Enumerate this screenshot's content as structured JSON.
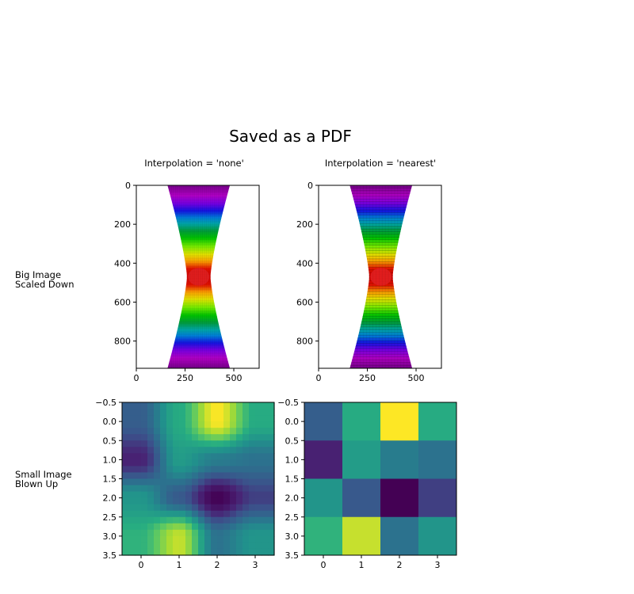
{
  "figure": {
    "title": "Saved as a PDF",
    "row_labels": [
      "Big Image\nScaled Down",
      "Small Image\nBlown Up"
    ],
    "column_titles": [
      "Interpolation = 'none'",
      "Interpolation = 'nearest'"
    ]
  },
  "chart_data": [
    {
      "type": "heatmap",
      "name": "big-image-interpolation-none",
      "title": "Interpolation = 'none'",
      "row_label": "Big Image Scaled Down",
      "colormap": "nipy_spectral",
      "description_values": "hourglass-shaped field, red at center (~y 470), bands through yellow, green, blue, magenta to purple at top and bottom",
      "xlim": [
        0,
        630
      ],
      "ylim": [
        940,
        0
      ],
      "x_ticks": [
        0,
        250,
        500
      ],
      "y_ticks": [
        0,
        200,
        400,
        600,
        800
      ],
      "shape_x_extent_top": [
        160,
        480
      ],
      "shape_x_extent_waist": [
        260,
        380
      ],
      "center": [
        320,
        470
      ]
    },
    {
      "type": "heatmap",
      "name": "big-image-interpolation-nearest",
      "title": "Interpolation = 'nearest'",
      "row_label": "Big Image Scaled Down",
      "colormap": "nipy_spectral",
      "xlim": [
        0,
        630
      ],
      "ylim": [
        940,
        0
      ],
      "x_ticks": [
        0,
        250,
        500
      ],
      "y_ticks": [
        0,
        200,
        400,
        600,
        800
      ],
      "shape_x_extent_top": [
        160,
        480
      ],
      "shape_x_extent_waist": [
        260,
        380
      ],
      "center": [
        320,
        470
      ]
    },
    {
      "type": "heatmap",
      "name": "small-image-interpolation-none",
      "row_label": "Small Image Blown Up",
      "colormap": "viridis",
      "interpolation": "smooth",
      "xlim": [
        -0.5,
        3.5
      ],
      "ylim": [
        3.5,
        -0.5
      ],
      "x_ticks": [
        "0",
        "1",
        "2",
        "3"
      ],
      "y_ticks": [
        "−0.5",
        "0.0",
        "0.5",
        "1.0",
        "1.5",
        "2.0",
        "2.5",
        "3.0",
        "3.5"
      ],
      "values": [
        [
          0.3,
          0.62,
          1.0,
          0.62
        ],
        [
          0.12,
          0.55,
          0.42,
          0.38
        ],
        [
          0.52,
          0.28,
          0.0,
          0.2
        ],
        [
          0.65,
          0.92,
          0.38,
          0.52
        ]
      ]
    },
    {
      "type": "heatmap",
      "name": "small-image-interpolation-nearest",
      "row_label": "Small Image Blown Up",
      "colormap": "viridis",
      "interpolation": "nearest",
      "xlim": [
        -0.5,
        3.5
      ],
      "ylim": [
        3.5,
        -0.5
      ],
      "x_ticks": [
        "0",
        "1",
        "2",
        "3"
      ],
      "y_ticks": [
        "−0.5",
        "0.0",
        "0.5",
        "1.0",
        "1.5",
        "2.0",
        "2.5",
        "3.0",
        "3.5"
      ],
      "values": [
        [
          0.3,
          0.62,
          1.0,
          0.62
        ],
        [
          0.12,
          0.55,
          0.42,
          0.38
        ],
        [
          0.52,
          0.28,
          0.0,
          0.2
        ],
        [
          0.65,
          0.92,
          0.38,
          0.52
        ]
      ]
    }
  ]
}
